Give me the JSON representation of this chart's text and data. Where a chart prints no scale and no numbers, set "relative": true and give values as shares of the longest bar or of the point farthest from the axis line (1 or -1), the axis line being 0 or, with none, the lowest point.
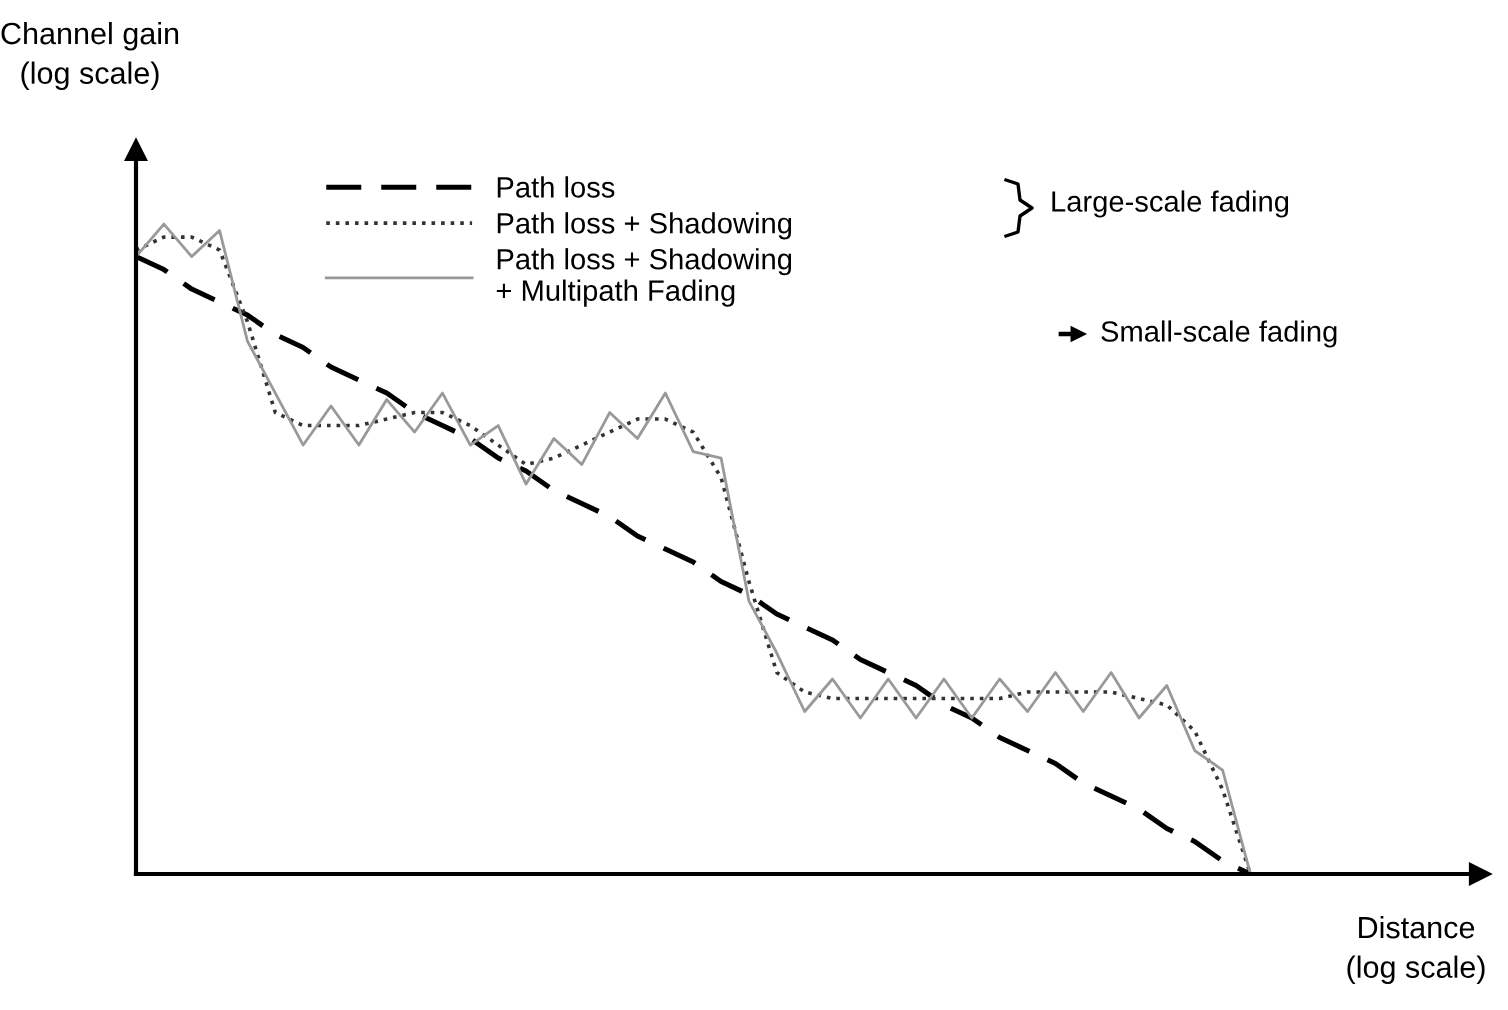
{
  "chart_data": {
    "type": "line",
    "relative": true,
    "xlabel": "Distance\n(log scale)",
    "ylabel": "Channel gain\n(log scale)",
    "legend": "top",
    "grid": false,
    "marker": "none",
    "annotations": [
      "Large-scale fading",
      "Small-scale fading"
    ],
    "categories": [
      null,
      null,
      null,
      null,
      null,
      null,
      null,
      null,
      null,
      null,
      null,
      null,
      null,
      null,
      null,
      null,
      null,
      null,
      null,
      null,
      null,
      null,
      null,
      null,
      null,
      null,
      null,
      null,
      null,
      null,
      null,
      null,
      null,
      null,
      null,
      null,
      null,
      null,
      null,
      null,
      null
    ],
    "series": [
      {
        "name": "Path loss",
        "color": "#000000",
        "line_style": "dashed",
        "values": [
          0.95,
          0.93,
          0.9,
          0.88,
          0.86,
          0.83,
          0.81,
          0.78,
          0.76,
          0.74,
          0.71,
          0.69,
          0.67,
          0.64,
          0.62,
          0.59,
          0.57,
          0.55,
          0.52,
          0.5,
          0.48,
          0.45,
          0.43,
          0.4,
          0.38,
          0.36,
          0.33,
          0.31,
          0.29,
          0.26,
          0.24,
          0.21,
          0.19,
          0.17,
          0.14,
          0.12,
          0.1,
          0.07,
          0.05,
          0.02,
          0
        ]
      },
      {
        "name": "Path loss + Shadowing",
        "color": "#333333",
        "line_style": "dotted",
        "values": [
          0.96,
          0.98,
          0.98,
          0.96,
          0.85,
          0.71,
          0.69,
          0.69,
          0.69,
          0.7,
          0.71,
          0.71,
          0.69,
          0.66,
          0.63,
          0.64,
          0.66,
          0.68,
          0.7,
          0.7,
          0.68,
          0.61,
          0.45,
          0.31,
          0.28,
          0.27,
          0.27,
          0.27,
          0.27,
          0.27,
          0.27,
          0.27,
          0.28,
          0.28,
          0.28,
          0.28,
          0.27,
          0.26,
          0.22,
          0.13,
          0
        ]
      },
      {
        "name": "Path loss + Shadowing\n+ Multipath Fading",
        "color": "#999999",
        "line_style": "solid",
        "values": [
          0.95,
          1.0,
          0.95,
          0.99,
          0.82,
          0.74,
          0.66,
          0.72,
          0.66,
          0.73,
          0.68,
          0.74,
          0.66,
          0.69,
          0.6,
          0.67,
          0.63,
          0.71,
          0.67,
          0.74,
          0.65,
          0.64,
          0.42,
          0.34,
          0.25,
          0.3,
          0.24,
          0.3,
          0.24,
          0.3,
          0.24,
          0.3,
          0.25,
          0.31,
          0.25,
          0.31,
          0.24,
          0.29,
          0.19,
          0.16,
          0
        ]
      }
    ]
  }
}
